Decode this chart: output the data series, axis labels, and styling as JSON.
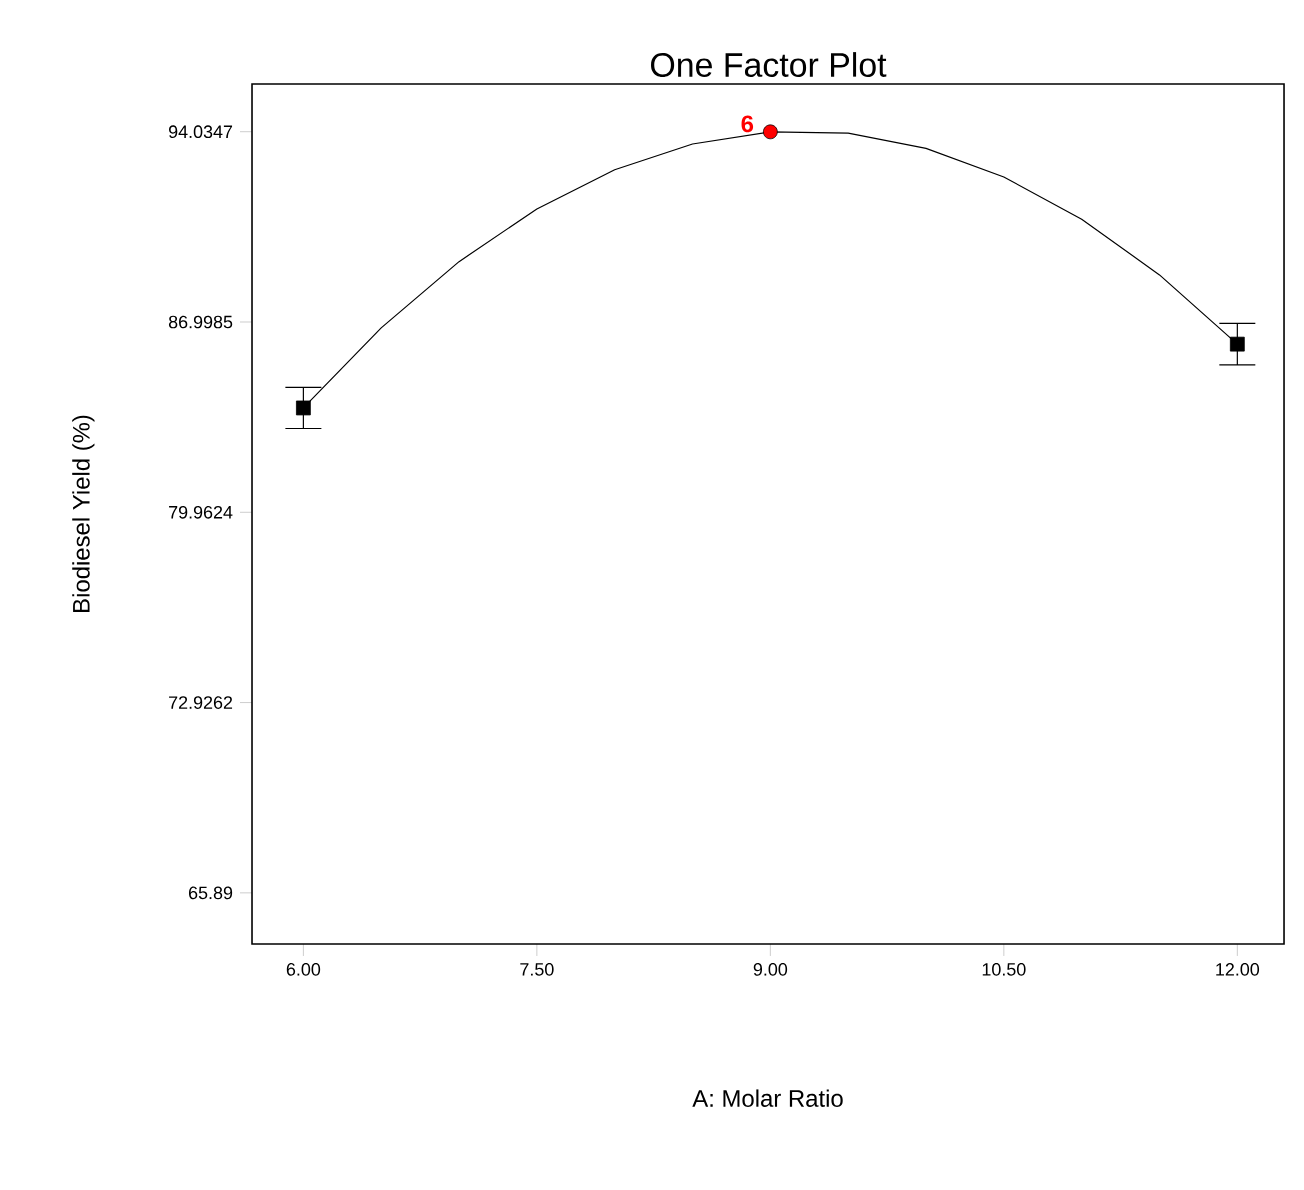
{
  "chart_data": {
    "type": "line",
    "title": "One Factor Plot",
    "xlabel": "A: Molar Ratio",
    "ylabel": "Biodiesel Yield (%)",
    "xlim": [
      5.67,
      12.3
    ],
    "ylim": [
      64.0,
      95.8
    ],
    "xticks": [
      {
        "value": 6,
        "label": "6.00"
      },
      {
        "value": 7.5,
        "label": "7.50"
      },
      {
        "value": 9,
        "label": "9.00"
      },
      {
        "value": 10.5,
        "label": "10.50"
      },
      {
        "value": 12,
        "label": "12.00"
      }
    ],
    "yticks": [
      65.89,
      72.9262,
      79.9624,
      86.9985,
      94.0347
    ],
    "grid": false,
    "annotations": [
      {
        "text": "6",
        "x": 9,
        "y": 94.03
      }
    ],
    "series": [
      {
        "color": "#000000",
        "marker": "none",
        "x": [
          6,
          6.5,
          7,
          7.5,
          8,
          8.5,
          9,
          9.5,
          10,
          10.5,
          11,
          11.5,
          12
        ],
        "values": [
          83.82,
          86.78,
          89.23,
          91.18,
          92.63,
          93.58,
          94.03,
          93.98,
          93.42,
          92.36,
          90.8,
          88.74,
          86.18
        ]
      },
      {
        "type": "scatter",
        "color": "#000000",
        "marker": "square",
        "x": [
          6,
          12
        ],
        "values": [
          83.82,
          86.18
        ],
        "errors": [
          0.76,
          0.77
        ]
      },
      {
        "type": "scatter",
        "color": "#ff0000",
        "marker": "circle",
        "x": [
          9
        ],
        "values": [
          94.03
        ]
      }
    ]
  }
}
